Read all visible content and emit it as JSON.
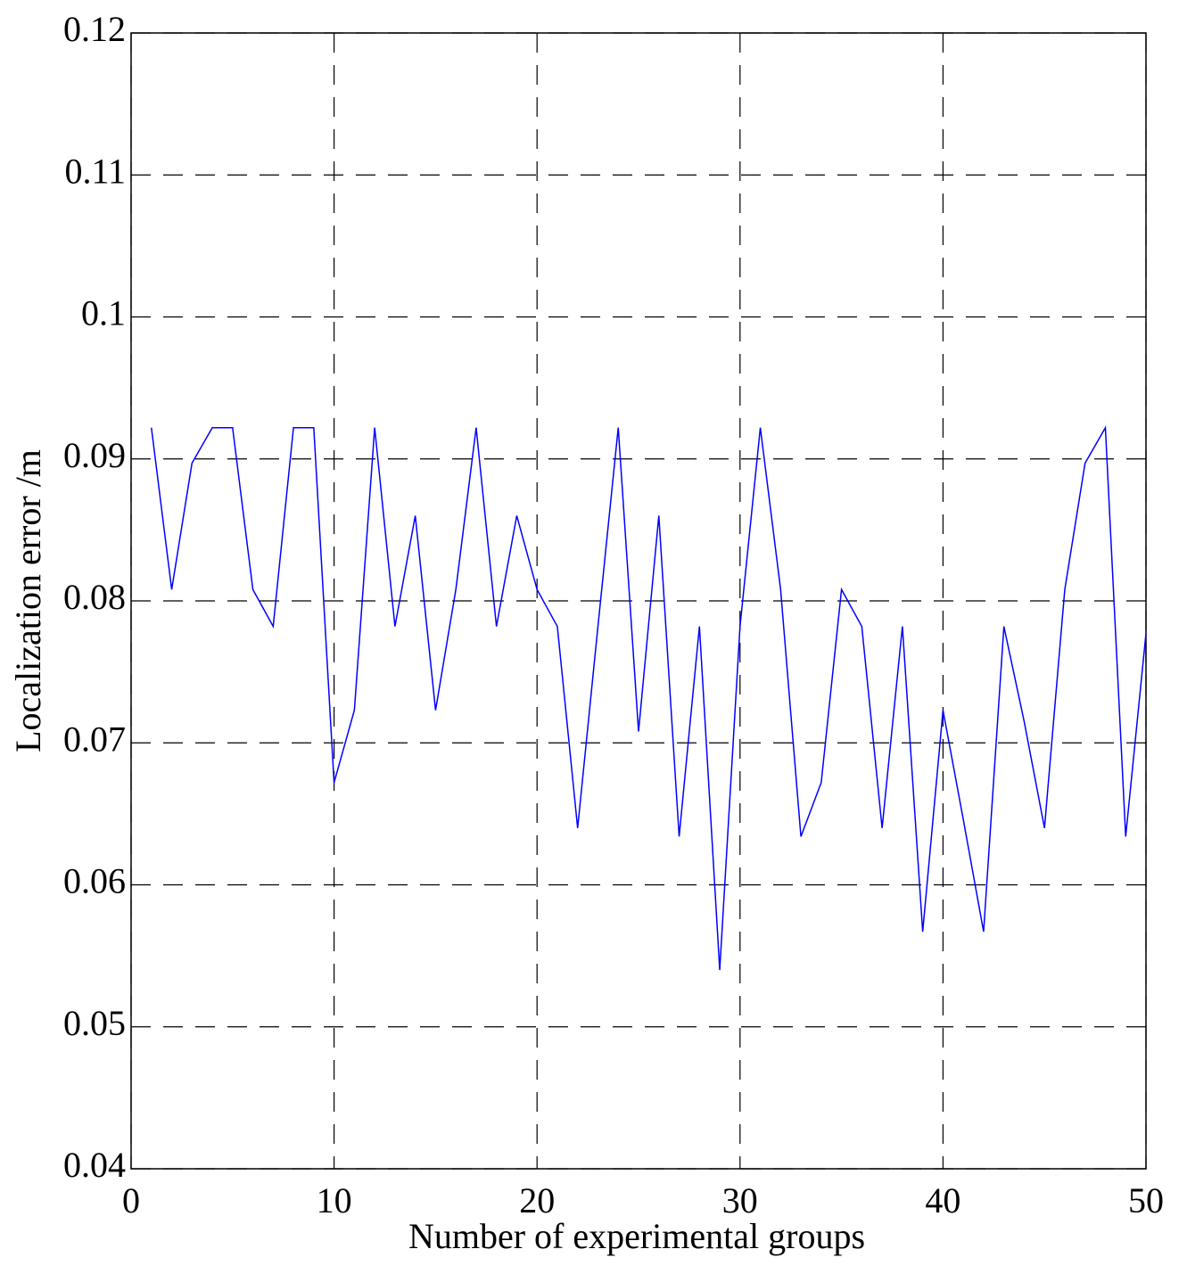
{
  "chart_data": {
    "type": "line",
    "xlabel": "Number of experimental groups",
    "ylabel": "Localization  error /m",
    "x": [
      1,
      2,
      3,
      4,
      5,
      6,
      7,
      8,
      9,
      10,
      11,
      12,
      13,
      14,
      15,
      16,
      17,
      18,
      19,
      20,
      21,
      22,
      23,
      24,
      25,
      26,
      27,
      28,
      29,
      30,
      31,
      32,
      33,
      34,
      35,
      36,
      37,
      38,
      39,
      40,
      41,
      42,
      43,
      44,
      45,
      46,
      47,
      48,
      49,
      50
    ],
    "series": [
      {
        "color": "#0000ff",
        "values": [
          0.0922,
          0.0808,
          0.0897,
          0.0922,
          0.0922,
          0.0808,
          0.0782,
          0.0922,
          0.0922,
          0.0672,
          0.0723,
          0.0922,
          0.0782,
          0.086,
          0.0723,
          0.0808,
          0.0922,
          0.0782,
          0.086,
          0.0808,
          0.0782,
          0.064,
          0.0782,
          0.0922,
          0.0708,
          0.086,
          0.0634,
          0.0782,
          0.054,
          0.0782,
          0.0922,
          0.0808,
          0.0634,
          0.0672,
          0.0808,
          0.0782,
          0.064,
          0.0782,
          0.0567,
          0.0723,
          0.0646,
          0.0567,
          0.0782,
          0.0715,
          0.064,
          0.0808,
          0.0897,
          0.0922,
          0.0634,
          0.0777
        ]
      }
    ],
    "xlim": [
      0,
      50
    ],
    "xticks": [
      0,
      10,
      20,
      30,
      40,
      50
    ],
    "ylim": [
      0.04,
      0.12
    ],
    "yticks": [
      0.04,
      0.05,
      0.06,
      0.07,
      0.08,
      0.09,
      0.1,
      0.11,
      0.12
    ],
    "grid": true
  }
}
